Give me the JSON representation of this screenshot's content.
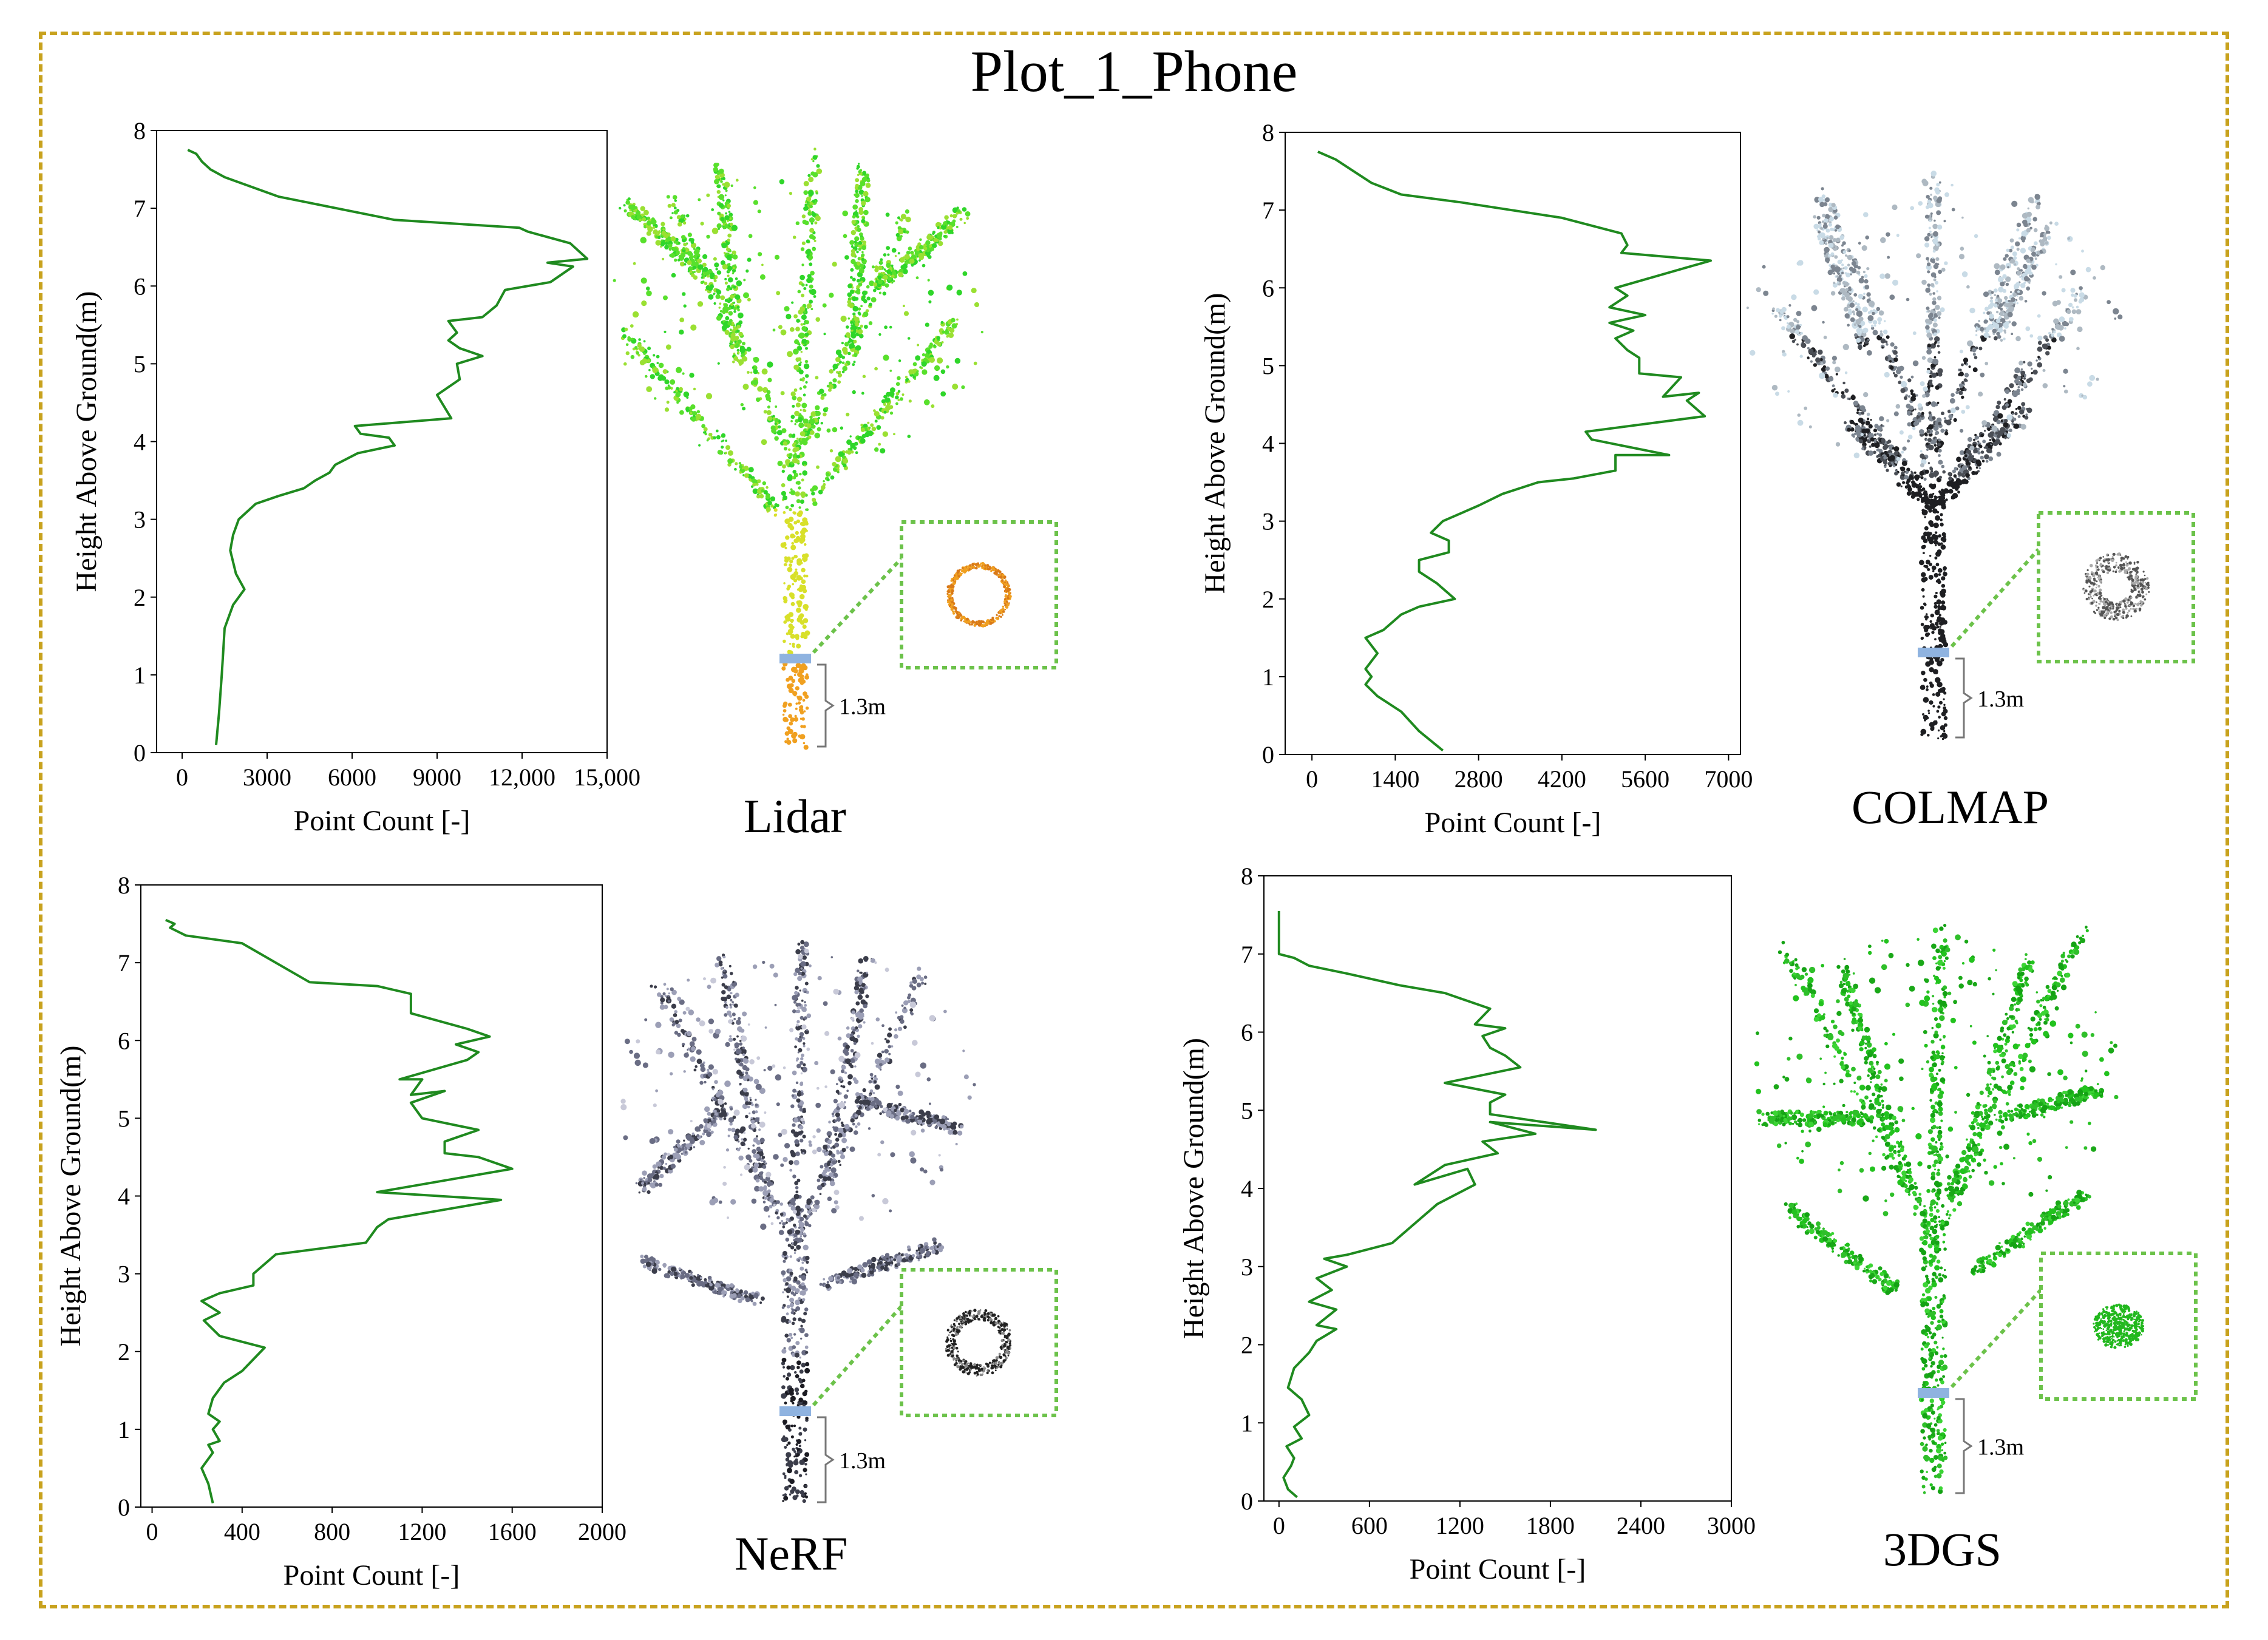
{
  "page": {
    "title": "Plot_1_Phone"
  },
  "colors": {
    "frame": "#c8a21e",
    "line": "#1f8a1f",
    "zoom_box": "#6cc24a",
    "dbh_marker": "#8fb3e0"
  },
  "dbh_label": "1.3m",
  "chart_data": [
    {
      "type": "line",
      "name": "Lidar",
      "xlabel": "Point Count [-]",
      "ylabel": "Height Above Ground(m)",
      "xlim": [
        -900,
        15000
      ],
      "ylim": [
        0,
        8
      ],
      "xticks": [
        0,
        3000,
        6000,
        9000,
        12000,
        15000
      ],
      "xtick_labels": [
        "0",
        "3000",
        "6000",
        "9000",
        "12,000",
        "15,000"
      ],
      "yticks": [
        0,
        1,
        2,
        3,
        4,
        5,
        6,
        7,
        8
      ],
      "x": [
        1200,
        1300,
        1400,
        1450,
        1500,
        1800,
        2200,
        1900,
        1700,
        1800,
        2000,
        2600,
        3400,
        4300,
        4700,
        5200,
        5400,
        6200,
        7500,
        7300,
        6300,
        6100,
        9500,
        9000,
        9800,
        9700,
        10600,
        9800,
        9400,
        9700,
        9400,
        10600,
        11100,
        11400,
        13000,
        13800,
        12900,
        14300,
        13700,
        12200,
        11900,
        7500,
        3400,
        1500,
        1000,
        700,
        500,
        200
      ],
      "y": [
        0.1,
        0.5,
        1.0,
        1.3,
        1.6,
        1.9,
        2.1,
        2.3,
        2.6,
        2.8,
        3.0,
        3.2,
        3.3,
        3.4,
        3.5,
        3.6,
        3.7,
        3.85,
        3.95,
        4.05,
        4.1,
        4.2,
        4.3,
        4.6,
        4.8,
        5.0,
        5.1,
        5.2,
        5.3,
        5.4,
        5.55,
        5.6,
        5.75,
        5.95,
        6.05,
        6.25,
        6.3,
        6.35,
        6.55,
        6.7,
        6.75,
        6.85,
        7.15,
        7.4,
        7.5,
        7.6,
        7.7,
        7.75
      ]
    },
    {
      "type": "line",
      "name": "COLMAP",
      "xlabel": "Point Count [-]",
      "ylabel": "Height Above Ground(m)",
      "xlim": [
        -450,
        7200
      ],
      "ylim": [
        0,
        8
      ],
      "xticks": [
        0,
        1400,
        2800,
        4200,
        5600,
        7000
      ],
      "xtick_labels": [
        "0",
        "1400",
        "2800",
        "4200",
        "5600",
        "7000"
      ],
      "yticks": [
        0,
        1,
        2,
        3,
        4,
        5,
        6,
        7,
        8
      ],
      "x": [
        2200,
        1800,
        1500,
        1100,
        900,
        1000,
        900,
        1100,
        900,
        1200,
        1500,
        1800,
        2400,
        2100,
        1800,
        1800,
        2300,
        2300,
        2000,
        2200,
        2800,
        3200,
        3800,
        4400,
        5100,
        5100,
        6000,
        4700,
        4600,
        6600,
        6300,
        6500,
        5900,
        6200,
        5500,
        5500,
        5300,
        5100,
        5400,
        5000,
        5600,
        5000,
        5300,
        5100,
        6700,
        5200,
        5300,
        5200,
        4200,
        2500,
        1500,
        1000,
        700,
        400,
        100
      ],
      "y": [
        0.05,
        0.3,
        0.55,
        0.75,
        0.9,
        1.0,
        1.1,
        1.3,
        1.5,
        1.6,
        1.8,
        1.9,
        2.0,
        2.2,
        2.35,
        2.5,
        2.6,
        2.75,
        2.85,
        3.0,
        3.2,
        3.35,
        3.5,
        3.55,
        3.65,
        3.85,
        3.85,
        4.05,
        4.15,
        4.35,
        4.55,
        4.65,
        4.6,
        4.85,
        4.9,
        5.1,
        5.2,
        5.35,
        5.45,
        5.55,
        5.65,
        5.75,
        5.9,
        6.0,
        6.35,
        6.45,
        6.55,
        6.7,
        6.9,
        7.1,
        7.2,
        7.35,
        7.5,
        7.65,
        7.75
      ]
    },
    {
      "type": "line",
      "name": "NeRF",
      "xlabel": "Point Count [-]",
      "ylabel": "Height Above Ground(m)",
      "xlim": [
        -50,
        2000
      ],
      "ylim": [
        0,
        8
      ],
      "xticks": [
        0,
        400,
        800,
        1200,
        1600,
        2000
      ],
      "xtick_labels": [
        "0",
        "400",
        "800",
        "1200",
        "1600",
        "2000"
      ],
      "yticks": [
        0,
        1,
        2,
        3,
        4,
        5,
        6,
        7,
        8
      ],
      "x": [
        270,
        250,
        220,
        270,
        250,
        300,
        270,
        300,
        250,
        270,
        320,
        400,
        500,
        300,
        230,
        300,
        220,
        300,
        450,
        450,
        550,
        950,
        1000,
        1050,
        1550,
        1000,
        1600,
        1450,
        1300,
        1300,
        1450,
        1200,
        1150,
        1300,
        1150,
        1200,
        1100,
        1400,
        1450,
        1350,
        1500,
        1400,
        1150,
        1150,
        1000,
        700,
        400,
        150,
        80,
        100,
        60
      ],
      "y": [
        0.05,
        0.3,
        0.5,
        0.7,
        0.8,
        0.85,
        1.0,
        1.1,
        1.2,
        1.4,
        1.6,
        1.75,
        2.05,
        2.2,
        2.4,
        2.5,
        2.65,
        2.75,
        2.85,
        3.0,
        3.25,
        3.4,
        3.6,
        3.7,
        3.95,
        4.05,
        4.35,
        4.5,
        4.55,
        4.7,
        4.85,
        5.0,
        5.2,
        5.35,
        5.3,
        5.5,
        5.5,
        5.75,
        5.85,
        5.95,
        6.05,
        6.15,
        6.35,
        6.6,
        6.7,
        6.75,
        7.25,
        7.35,
        7.45,
        7.5,
        7.55
      ]
    },
    {
      "type": "line",
      "name": "3DGS",
      "xlabel": "Point Count [-]",
      "ylabel": "Height Above Ground(m)",
      "xlim": [
        -100,
        3000
      ],
      "ylim": [
        0,
        8
      ],
      "xticks": [
        0,
        600,
        1200,
        1800,
        2400,
        3000
      ],
      "xtick_labels": [
        "0",
        "600",
        "1200",
        "1800",
        "2400",
        "3000"
      ],
      "yticks": [
        0,
        1,
        2,
        3,
        4,
        5,
        6,
        7,
        8
      ],
      "x": [
        120,
        60,
        30,
        80,
        100,
        50,
        150,
        100,
        200,
        150,
        60,
        100,
        200,
        250,
        380,
        250,
        380,
        200,
        350,
        250,
        450,
        300,
        450,
        750,
        900,
        1050,
        1300,
        1250,
        900,
        1100,
        1450,
        1350,
        1700,
        1400,
        2100,
        1400,
        1400,
        1500,
        1100,
        1600,
        1500,
        1400,
        1350,
        1500,
        1300,
        1400,
        1100,
        800,
        450,
        200,
        100,
        0,
        0,
        0
      ],
      "y": [
        0.05,
        0.15,
        0.3,
        0.45,
        0.55,
        0.7,
        0.8,
        0.95,
        1.1,
        1.3,
        1.45,
        1.7,
        1.9,
        2.05,
        2.2,
        2.25,
        2.45,
        2.55,
        2.7,
        2.85,
        3.0,
        3.1,
        3.15,
        3.3,
        3.55,
        3.8,
        4.05,
        4.25,
        4.05,
        4.3,
        4.45,
        4.6,
        4.7,
        4.85,
        4.75,
        4.95,
        5.1,
        5.2,
        5.35,
        5.55,
        5.7,
        5.8,
        5.95,
        6.05,
        6.1,
        6.3,
        6.5,
        6.6,
        6.75,
        6.85,
        6.95,
        7.0,
        7.2,
        7.55
      ]
    }
  ]
}
